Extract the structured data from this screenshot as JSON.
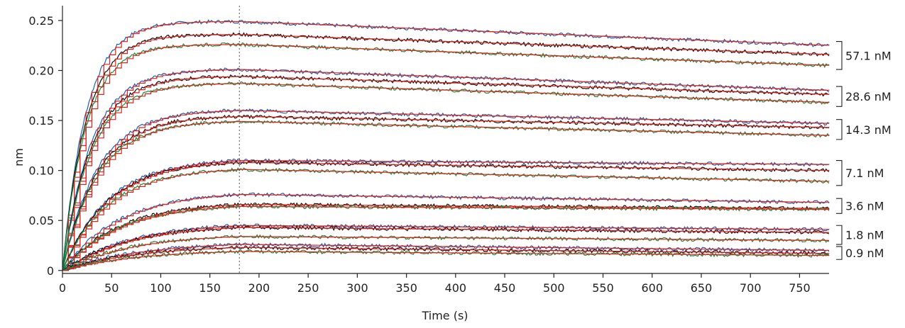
{
  "chart_data": {
    "type": "line",
    "title": "",
    "xlabel": "Time (s)",
    "ylabel": "nm",
    "xlim": [
      0,
      780
    ],
    "ylim": [
      -0.003,
      0.262
    ],
    "x_ticks": [
      0,
      50,
      100,
      150,
      200,
      250,
      300,
      350,
      400,
      450,
      500,
      550,
      600,
      650,
      700,
      750
    ],
    "x_tick_labels": [
      "0",
      "50",
      "100",
      "150",
      "200",
      "250",
      "300",
      "350",
      "400",
      "450",
      "500",
      "550",
      "600",
      "650",
      "700",
      "750"
    ],
    "y_ticks": [
      0,
      0.05,
      0.1,
      0.15,
      0.2,
      0.25
    ],
    "y_tick_labels": [
      "0",
      "0.05",
      "0.10",
      "0.15",
      "0.20",
      "0.25"
    ],
    "association_end_time": 180,
    "grid": false,
    "legend": "none",
    "colors": {
      "blue": "#1f5fae",
      "black": "#111111",
      "green": "#1a8a3a",
      "fit": "#e0201c"
    },
    "fit_color": "#e0201c",
    "groups": [
      {
        "label": "57.1 nM",
        "plateaus": [
          0.249,
          0.236,
          0.226
        ],
        "end_values": [
          0.225,
          0.216,
          0.205
        ]
      },
      {
        "label": "28.6 nM",
        "plateaus": [
          0.201,
          0.194,
          0.187
        ],
        "end_values": [
          0.18,
          0.176,
          0.168
        ]
      },
      {
        "label": "14.3 nM",
        "plateaus": [
          0.16,
          0.154,
          0.149
        ],
        "end_values": [
          0.147,
          0.143,
          0.135
        ]
      },
      {
        "label": "7.1 nM",
        "plateaus": [
          0.11,
          0.108,
          0.101
        ],
        "end_values": [
          0.106,
          0.1,
          0.089
        ]
      },
      {
        "label": "3.6 nM",
        "plateaus": [
          0.076,
          0.066,
          0.064
        ],
        "end_values": [
          0.068,
          0.062,
          0.061
        ]
      },
      {
        "label": "1.8 nM",
        "plateaus": [
          0.045,
          0.043,
          0.034
        ],
        "end_values": [
          0.041,
          0.038,
          0.03
        ]
      },
      {
        "label": "0.9 nM",
        "plateaus": [
          0.026,
          0.023,
          0.019
        ],
        "end_values": [
          0.02,
          0.017,
          0.015
        ]
      }
    ]
  }
}
